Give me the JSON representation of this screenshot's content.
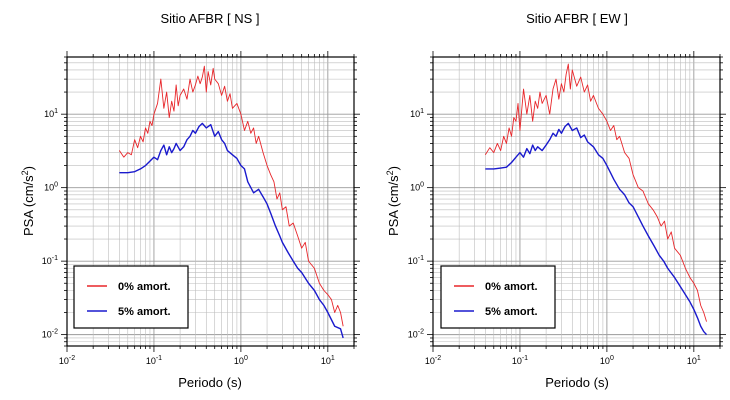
{
  "chart_data": [
    {
      "type": "line",
      "title": "Sitio AFBR [ NS ]",
      "xlabel": "Periodo (s)",
      "ylabel": "PSA (cm/s",
      "ylabel_sup": "2",
      "ylabel_close": ")",
      "x_scale": "log",
      "y_scale": "log",
      "xlim": [
        0.01,
        20
      ],
      "ylim": [
        0.007,
        60
      ],
      "x_ticks": [
        {
          "value": 0.01,
          "base": "10",
          "exp": "-2"
        },
        {
          "value": 0.1,
          "base": "10",
          "exp": "-1"
        },
        {
          "value": 1,
          "base": "10",
          "exp": "0"
        },
        {
          "value": 10,
          "base": "10",
          "exp": "1"
        }
      ],
      "y_ticks": [
        {
          "value": 0.01,
          "base": "10",
          "exp": "-2"
        },
        {
          "value": 0.1,
          "base": "10",
          "exp": "-1"
        },
        {
          "value": 1,
          "base": "10",
          "exp": "0"
        },
        {
          "value": 10,
          "base": "10",
          "exp": "1"
        }
      ],
      "grid": true,
      "legend_position": "bottom-left",
      "series": [
        {
          "name": "0% amort.",
          "color": "#e8262a",
          "x": [
            0.04,
            0.045,
            0.05,
            0.055,
            0.06,
            0.065,
            0.07,
            0.075,
            0.08,
            0.085,
            0.09,
            0.095,
            0.1,
            0.11,
            0.12,
            0.13,
            0.14,
            0.15,
            0.16,
            0.17,
            0.18,
            0.19,
            0.2,
            0.22,
            0.24,
            0.26,
            0.28,
            0.3,
            0.32,
            0.34,
            0.36,
            0.38,
            0.4,
            0.42,
            0.45,
            0.48,
            0.5,
            0.55,
            0.6,
            0.65,
            0.7,
            0.75,
            0.8,
            0.9,
            1.0,
            1.1,
            1.2,
            1.3,
            1.4,
            1.5,
            1.6,
            1.8,
            2.0,
            2.2,
            2.4,
            2.6,
            2.8,
            3.0,
            3.3,
            3.6,
            4.0,
            4.5,
            5.0,
            5.5,
            6.0,
            7.0,
            8.0,
            9.0,
            10.0,
            11.0,
            12.0,
            13.0,
            14.0,
            15.0
          ],
          "y": [
            3.2,
            2.6,
            3.0,
            2.8,
            4.5,
            3.5,
            5.0,
            4.2,
            6.5,
            5.5,
            8.0,
            7.0,
            10.0,
            14.0,
            30.0,
            12.0,
            20.0,
            9.0,
            15.0,
            11.0,
            25.0,
            13.0,
            18.0,
            22.0,
            16.0,
            30.0,
            20.0,
            25.0,
            33.0,
            26.0,
            32.0,
            45.0,
            20.0,
            38.0,
            25.0,
            42.0,
            30.0,
            26.0,
            18.0,
            24.0,
            15.0,
            19.0,
            12.0,
            14.0,
            10.0,
            6.0,
            8.0,
            5.5,
            6.5,
            4.0,
            5.0,
            3.0,
            2.0,
            1.5,
            1.2,
            0.7,
            0.85,
            0.5,
            0.55,
            0.3,
            0.33,
            0.22,
            0.15,
            0.18,
            0.1,
            0.08,
            0.05,
            0.04,
            0.035,
            0.03,
            0.02,
            0.025,
            0.02,
            0.013
          ]
        },
        {
          "name": "5% amort.",
          "color": "#1a1acd",
          "x": [
            0.04,
            0.05,
            0.06,
            0.07,
            0.08,
            0.09,
            0.1,
            0.11,
            0.12,
            0.13,
            0.14,
            0.15,
            0.16,
            0.17,
            0.18,
            0.2,
            0.22,
            0.24,
            0.26,
            0.28,
            0.3,
            0.33,
            0.36,
            0.4,
            0.45,
            0.5,
            0.55,
            0.6,
            0.65,
            0.7,
            0.8,
            0.9,
            1.0,
            1.1,
            1.2,
            1.4,
            1.6,
            1.8,
            2.0,
            2.2,
            2.5,
            2.8,
            3.0,
            3.5,
            4.0,
            4.5,
            5.0,
            6.0,
            7.0,
            8.0,
            9.0,
            10.0,
            12.0,
            14.0,
            15.0
          ],
          "y": [
            1.6,
            1.6,
            1.65,
            1.8,
            2.0,
            2.3,
            2.6,
            2.4,
            3.2,
            3.8,
            2.8,
            3.6,
            3.0,
            3.4,
            4.0,
            3.2,
            3.6,
            4.5,
            5.0,
            6.0,
            5.5,
            6.8,
            7.5,
            6.5,
            7.2,
            5.0,
            5.8,
            4.5,
            4.0,
            3.2,
            2.8,
            2.5,
            2.0,
            1.8,
            1.2,
            0.85,
            0.95,
            0.75,
            0.6,
            0.45,
            0.3,
            0.22,
            0.18,
            0.13,
            0.1,
            0.08,
            0.07,
            0.05,
            0.04,
            0.03,
            0.025,
            0.02,
            0.013,
            0.012,
            0.009
          ]
        }
      ]
    },
    {
      "type": "line",
      "title": "Sitio AFBR [ EW ]",
      "xlabel": "Periodo (s)",
      "ylabel": "PSA (cm/s",
      "ylabel_sup": "2",
      "ylabel_close": ")",
      "x_scale": "log",
      "y_scale": "log",
      "xlim": [
        0.01,
        20
      ],
      "ylim": [
        0.007,
        60
      ],
      "x_ticks": [
        {
          "value": 0.01,
          "base": "10",
          "exp": "-2"
        },
        {
          "value": 0.1,
          "base": "10",
          "exp": "-1"
        },
        {
          "value": 1,
          "base": "10",
          "exp": "0"
        },
        {
          "value": 10,
          "base": "10",
          "exp": "1"
        }
      ],
      "y_ticks": [
        {
          "value": 0.01,
          "base": "10",
          "exp": "-2"
        },
        {
          "value": 0.1,
          "base": "10",
          "exp": "-1"
        },
        {
          "value": 1,
          "base": "10",
          "exp": "0"
        },
        {
          "value": 10,
          "base": "10",
          "exp": "1"
        }
      ],
      "grid": true,
      "legend_position": "bottom-left",
      "series": [
        {
          "name": "0% amort.",
          "color": "#e8262a",
          "x": [
            0.04,
            0.045,
            0.05,
            0.055,
            0.06,
            0.065,
            0.07,
            0.075,
            0.08,
            0.085,
            0.09,
            0.095,
            0.1,
            0.11,
            0.12,
            0.13,
            0.14,
            0.15,
            0.16,
            0.17,
            0.18,
            0.2,
            0.22,
            0.24,
            0.26,
            0.28,
            0.3,
            0.32,
            0.34,
            0.36,
            0.38,
            0.4,
            0.45,
            0.5,
            0.55,
            0.6,
            0.65,
            0.7,
            0.8,
            0.9,
            1.0,
            1.1,
            1.2,
            1.3,
            1.4,
            1.6,
            1.8,
            2.0,
            2.3,
            2.6,
            3.0,
            3.4,
            3.8,
            4.2,
            4.6,
            5.0,
            5.5,
            6.0,
            7.0,
            8.0,
            9.0,
            10.0,
            11.0,
            12.0,
            13.0,
            14.0
          ],
          "y": [
            2.8,
            3.5,
            3.0,
            4.0,
            3.2,
            5.0,
            4.0,
            6.5,
            5.0,
            9.0,
            8.0,
            14.0,
            6.0,
            22.0,
            10.0,
            18.0,
            8.0,
            15.0,
            12.0,
            20.0,
            14.0,
            18.0,
            10.0,
            22.0,
            30.0,
            16.0,
            26.0,
            20.0,
            35.0,
            48.0,
            22.0,
            40.0,
            24.0,
            32.0,
            20.0,
            25.0,
            15.0,
            18.0,
            12.0,
            10.0,
            8.0,
            6.0,
            7.0,
            4.5,
            5.0,
            3.0,
            2.5,
            1.5,
            1.0,
            0.9,
            0.6,
            0.5,
            0.4,
            0.3,
            0.35,
            0.2,
            0.25,
            0.15,
            0.12,
            0.08,
            0.06,
            0.05,
            0.04,
            0.025,
            0.02,
            0.015
          ]
        },
        {
          "name": "5% amort.",
          "color": "#1a1acd",
          "x": [
            0.04,
            0.05,
            0.06,
            0.07,
            0.08,
            0.09,
            0.1,
            0.11,
            0.12,
            0.13,
            0.14,
            0.15,
            0.16,
            0.18,
            0.2,
            0.22,
            0.24,
            0.26,
            0.28,
            0.3,
            0.33,
            0.36,
            0.4,
            0.45,
            0.5,
            0.55,
            0.6,
            0.7,
            0.8,
            0.9,
            1.0,
            1.1,
            1.2,
            1.4,
            1.6,
            1.8,
            2.0,
            2.3,
            2.6,
            3.0,
            3.5,
            4.0,
            4.5,
            5.0,
            6.0,
            7.0,
            8.0,
            9.0,
            10.0,
            11.0,
            12.0,
            13.0,
            14.0
          ],
          "y": [
            1.8,
            1.8,
            1.85,
            1.9,
            2.2,
            2.6,
            3.0,
            2.6,
            3.4,
            2.9,
            3.8,
            3.2,
            3.6,
            3.2,
            3.8,
            4.5,
            5.5,
            5.0,
            6.2,
            5.5,
            6.8,
            7.5,
            6.0,
            6.5,
            4.8,
            5.2,
            4.2,
            3.6,
            2.8,
            2.5,
            2.0,
            1.6,
            1.3,
            0.95,
            0.8,
            0.62,
            0.55,
            0.4,
            0.3,
            0.22,
            0.16,
            0.12,
            0.1,
            0.08,
            0.06,
            0.045,
            0.035,
            0.028,
            0.022,
            0.017,
            0.013,
            0.011,
            0.01
          ]
        }
      ]
    }
  ]
}
